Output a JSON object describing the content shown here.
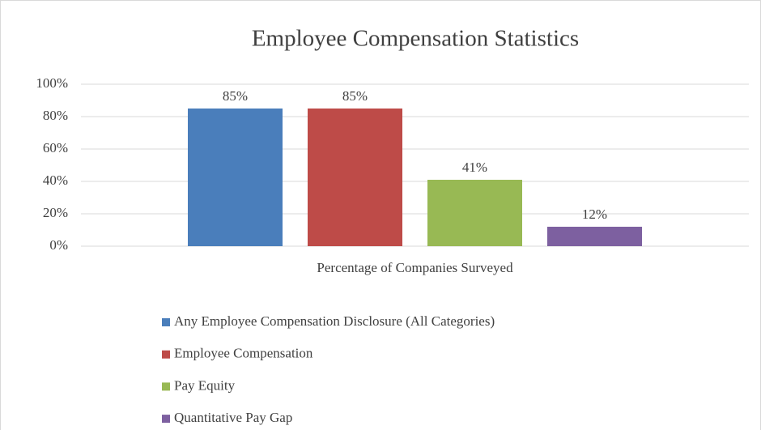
{
  "chart_data": {
    "type": "bar",
    "title": "Employee Compensation Statistics",
    "categories": [
      "Percentage of Companies Surveyed"
    ],
    "series": [
      {
        "name": "Any Employee Compensation Disclosure (All Categories)",
        "color": "#4a7ebb",
        "values": [
          85
        ],
        "value_labels": [
          "85%"
        ]
      },
      {
        "name": "Employee Compensation",
        "color": "#be4b48",
        "values": [
          85
        ],
        "value_labels": [
          "85%"
        ]
      },
      {
        "name": "Pay Equity",
        "color": "#98b954",
        "values": [
          41
        ],
        "value_labels": [
          "41%"
        ]
      },
      {
        "name": "Quantitative Pay Gap",
        "color": "#7d60a0",
        "values": [
          12
        ],
        "value_labels": [
          "12%"
        ]
      }
    ],
    "ylim": [
      0,
      100
    ],
    "yticks": [
      {
        "value": 0,
        "label": "0%"
      },
      {
        "value": 20,
        "label": "20%"
      },
      {
        "value": 40,
        "label": "40%"
      },
      {
        "value": 60,
        "label": "60%"
      },
      {
        "value": 80,
        "label": "80%"
      },
      {
        "value": 100,
        "label": "100%"
      }
    ],
    "grid": true,
    "legend": "bottom"
  }
}
